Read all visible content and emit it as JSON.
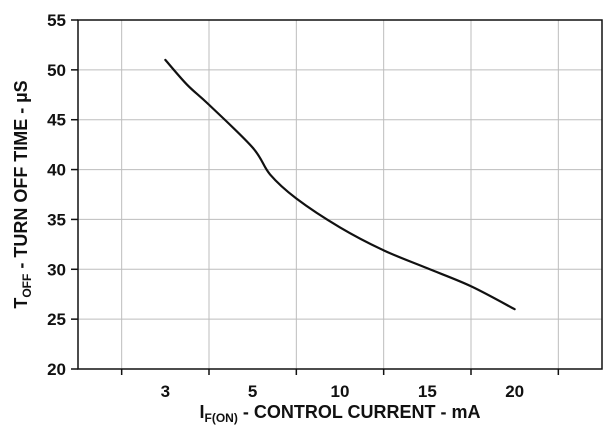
{
  "chart_data": {
    "type": "line",
    "xlabel": {
      "prefix": "I",
      "subscript": "F(ON)",
      "suffix": " - CONTROL CURRENT - mA"
    },
    "ylabel": {
      "prefix": "T",
      "subscript": "OFF",
      "suffix": " - TURN OFF TIME - µS"
    },
    "x_ticks": [
      "3",
      "5",
      "10",
      "15",
      "20"
    ],
    "y_ticks": [
      "20",
      "25",
      "30",
      "35",
      "40",
      "45",
      "50",
      "55"
    ],
    "ylim": [
      20,
      55
    ],
    "grid": true,
    "series": [
      {
        "color": "#111111",
        "points": [
          {
            "x": 3,
            "y": 51
          },
          {
            "x": 3.5,
            "y": 48.5
          },
          {
            "x": 4,
            "y": 46.5
          },
          {
            "x": 5,
            "y": 42.2
          },
          {
            "x": 6,
            "y": 39.5
          },
          {
            "x": 7.5,
            "y": 37.1
          },
          {
            "x": 10,
            "y": 34.2
          },
          {
            "x": 12.5,
            "y": 31.9
          },
          {
            "x": 15,
            "y": 30.1
          },
          {
            "x": 17.5,
            "y": 28.3
          },
          {
            "x": 20,
            "y": 26
          }
        ]
      }
    ]
  }
}
